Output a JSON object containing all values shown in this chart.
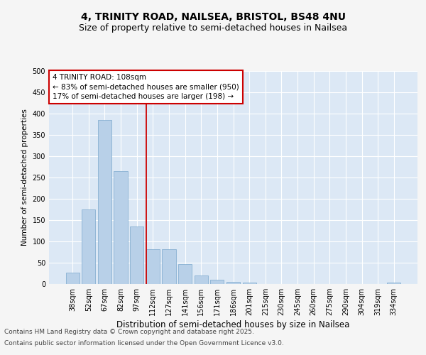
{
  "title1": "4, TRINITY ROAD, NAILSEA, BRISTOL, BS48 4NU",
  "title2": "Size of property relative to semi-detached houses in Nailsea",
  "xlabel": "Distribution of semi-detached houses by size in Nailsea",
  "ylabel": "Number of semi-detached properties",
  "categories": [
    "38sqm",
    "52sqm",
    "67sqm",
    "82sqm",
    "97sqm",
    "112sqm",
    "127sqm",
    "141sqm",
    "156sqm",
    "171sqm",
    "186sqm",
    "201sqm",
    "215sqm",
    "230sqm",
    "245sqm",
    "260sqm",
    "275sqm",
    "290sqm",
    "304sqm",
    "319sqm",
    "334sqm"
  ],
  "values": [
    27,
    175,
    385,
    265,
    135,
    82,
    82,
    47,
    20,
    10,
    5,
    3,
    0,
    0,
    0,
    0,
    0,
    0,
    0,
    0,
    3
  ],
  "bar_color": "#b8d0e8",
  "bar_edge_color": "#7aa8cc",
  "fig_bg_color": "#f5f5f5",
  "plot_bg_color": "#dce8f5",
  "grid_color": "#ffffff",
  "vline_x_index": 5,
  "vline_color": "#cc0000",
  "annotation_title": "4 TRINITY ROAD: 108sqm",
  "annotation_line1": "← 83% of semi-detached houses are smaller (950)",
  "annotation_line2": "17% of semi-detached houses are larger (198) →",
  "annotation_box_facecolor": "#ffffff",
  "annotation_box_edgecolor": "#cc0000",
  "footer1": "Contains HM Land Registry data © Crown copyright and database right 2025.",
  "footer2": "Contains public sector information licensed under the Open Government Licence v3.0.",
  "ylim": [
    0,
    500
  ],
  "yticks": [
    0,
    50,
    100,
    150,
    200,
    250,
    300,
    350,
    400,
    450,
    500
  ],
  "title1_fontsize": 10,
  "title2_fontsize": 9,
  "xlabel_fontsize": 8.5,
  "ylabel_fontsize": 7.5,
  "tick_fontsize": 7,
  "ann_fontsize": 7.5,
  "footer_fontsize": 6.5
}
